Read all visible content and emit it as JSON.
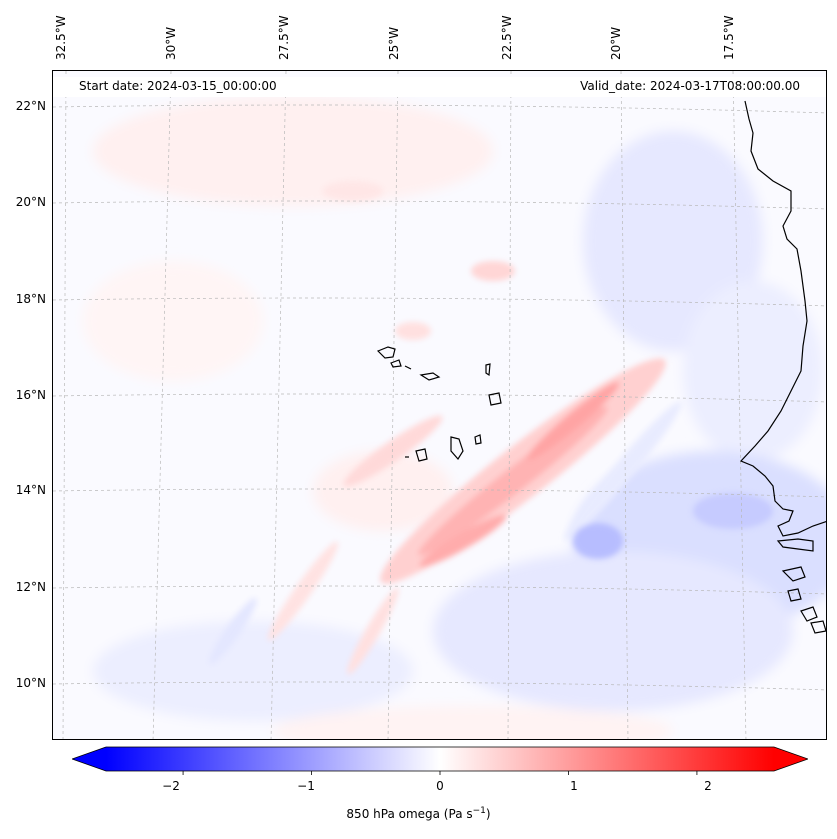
{
  "map": {
    "start_date": "Start date: 2024-03-15_00:00:00",
    "valid_date": "Valid_date: 2024-03-17T08:00:00.00",
    "longitude_labels": [
      "32.5°W",
      "30°W",
      "27.5°W",
      "25°W",
      "22.5°W",
      "20°W",
      "17.5°W"
    ],
    "latitude_labels": [
      "22°N",
      "20°N",
      "18°N",
      "16°N",
      "14°N",
      "12°N",
      "10°N"
    ],
    "field": "850 hPa omega",
    "features": [
      "Cape Verde islands",
      "West African coastline (Senegal, Gambia, Guinea-Bissau)"
    ]
  },
  "colorbar": {
    "label": "850 hPa omega (Pa s",
    "label_sup": "−1",
    "label_close": ")",
    "ticks": [
      "−2",
      "−1",
      "0",
      "1",
      "2"
    ],
    "range": [
      -2.6,
      2.6
    ],
    "low_color": "#0000ff",
    "mid_color": "#ffffff",
    "high_color": "#ff0000"
  }
}
